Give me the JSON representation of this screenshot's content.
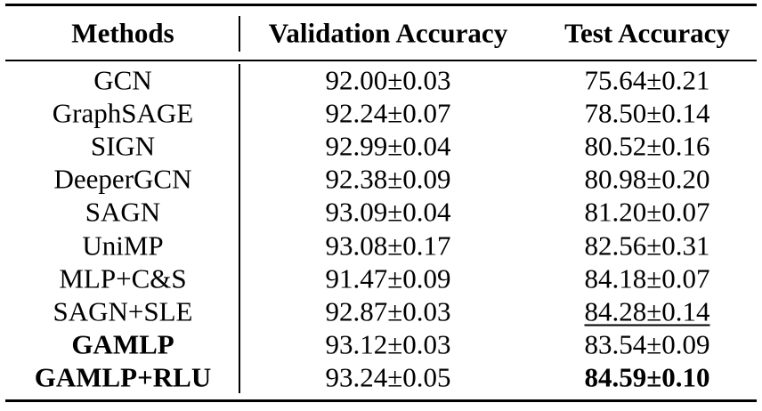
{
  "table": {
    "columns": [
      "Methods",
      "Validation Accuracy",
      "Test Accuracy"
    ],
    "rows": [
      [
        "GCN",
        "92.00±0.03",
        "75.64±0.21"
      ],
      [
        "GraphSAGE",
        "92.24±0.07",
        "78.50±0.14"
      ],
      [
        "SIGN",
        "92.99±0.04",
        "80.52±0.16"
      ],
      [
        "DeeperGCN",
        "92.38±0.09",
        "80.98±0.20"
      ],
      [
        "SAGN",
        "93.09±0.04",
        "81.20±0.07"
      ],
      [
        "UniMP",
        "93.08±0.17",
        "82.56±0.31"
      ],
      [
        "MLP+C&S",
        "91.47±0.09",
        "84.18±0.07"
      ],
      [
        "SAGN+SLE",
        "92.87±0.03",
        "84.28±0.14"
      ],
      [
        "GAMLP",
        "93.12±0.03",
        "83.54±0.09"
      ],
      [
        "GAMLP+RLU",
        "93.24±0.05",
        "84.59±0.10"
      ]
    ]
  }
}
